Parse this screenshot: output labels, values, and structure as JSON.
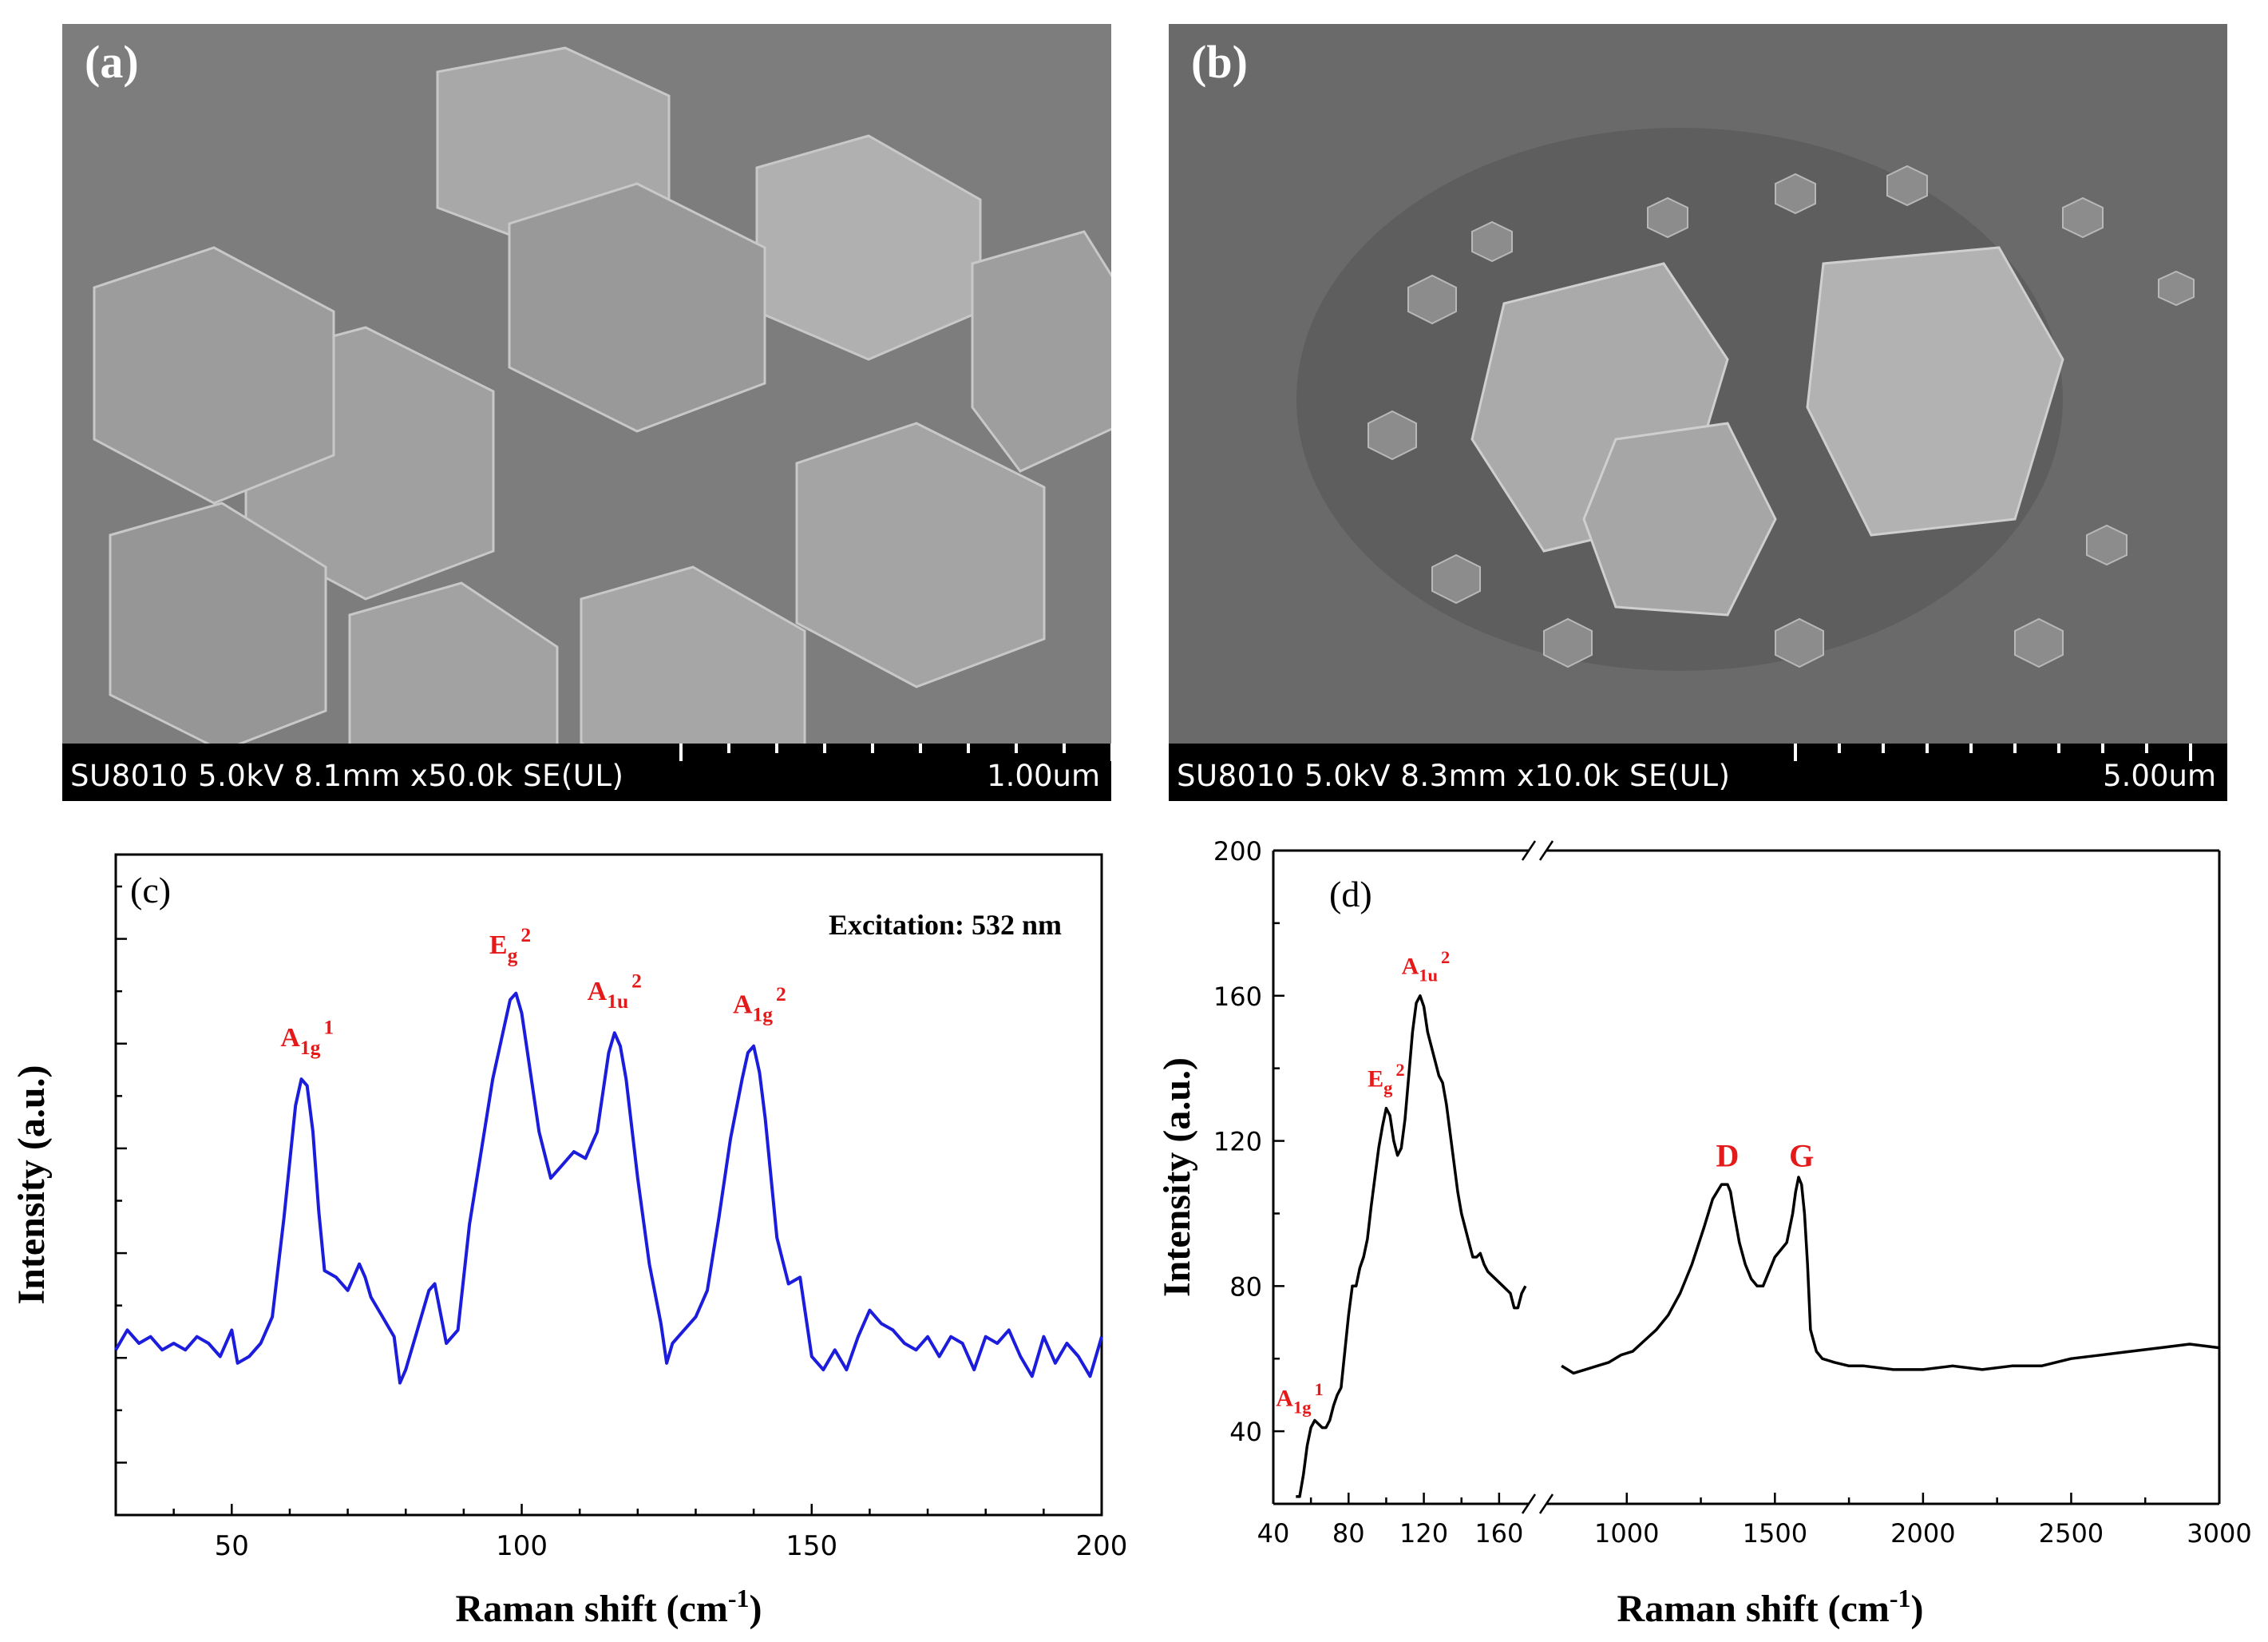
{
  "figure": {
    "panel_a": {
      "label": "(a)",
      "info_bar": "SU8010 5.0kV 8.1mm x50.0k SE(UL)",
      "scale_label": "1.00um"
    },
    "panel_b": {
      "label": "(b)",
      "info_bar": "SU8010 5.0kV 8.3mm x10.0k SE(UL)",
      "scale_label": "5.00um"
    }
  },
  "chart_data": [
    {
      "panel_label": "(c)",
      "type": "line",
      "annotation": "Excitation: 532 nm",
      "xlabel": "Raman shift (cm",
      "xlabel_sup": "-1",
      "xlabel_end": ")",
      "ylabel": "Intensity (a.u.)",
      "xlim": [
        30,
        200
      ],
      "xticks": [
        50,
        100,
        150,
        200
      ],
      "ylim": [
        0,
        1
      ],
      "y_minor_tick_count": 12,
      "yticks_labeled": false,
      "grid": false,
      "colors": {
        "series": "#1c1cdc",
        "peak_labels": "#e41a1a"
      },
      "series": [
        {
          "x": [
            30,
            32,
            34,
            36,
            38,
            40,
            42,
            44,
            46,
            48,
            50,
            51,
            53,
            55,
            57,
            59,
            61,
            62,
            63,
            64,
            65,
            66,
            68,
            70,
            72,
            73,
            74,
            76,
            78,
            79,
            80,
            82,
            84,
            85,
            87,
            89,
            91,
            93,
            95,
            97,
            98,
            99,
            100,
            101,
            103,
            105,
            107,
            109,
            111,
            113,
            115,
            116,
            117,
            118,
            120,
            122,
            124,
            125,
            126,
            128,
            130,
            132,
            134,
            136,
            138,
            139,
            140,
            141,
            142,
            144,
            146,
            148,
            150,
            152,
            154,
            156,
            158,
            160,
            162,
            164,
            166,
            168,
            170,
            172,
            174,
            176,
            178,
            180,
            182,
            184,
            186,
            188,
            190,
            192,
            194,
            196,
            198,
            200
          ],
          "y": [
            0.25,
            0.28,
            0.26,
            0.27,
            0.25,
            0.26,
            0.25,
            0.27,
            0.26,
            0.24,
            0.28,
            0.23,
            0.24,
            0.26,
            0.3,
            0.45,
            0.62,
            0.66,
            0.65,
            0.58,
            0.46,
            0.37,
            0.36,
            0.34,
            0.38,
            0.36,
            0.33,
            0.3,
            0.27,
            0.2,
            0.22,
            0.28,
            0.34,
            0.35,
            0.26,
            0.28,
            0.44,
            0.55,
            0.66,
            0.74,
            0.78,
            0.79,
            0.76,
            0.7,
            0.58,
            0.51,
            0.53,
            0.55,
            0.54,
            0.58,
            0.7,
            0.73,
            0.71,
            0.66,
            0.51,
            0.38,
            0.29,
            0.23,
            0.26,
            0.28,
            0.3,
            0.34,
            0.45,
            0.57,
            0.66,
            0.7,
            0.71,
            0.67,
            0.6,
            0.42,
            0.35,
            0.36,
            0.24,
            0.22,
            0.25,
            0.22,
            0.27,
            0.31,
            0.29,
            0.28,
            0.26,
            0.25,
            0.27,
            0.24,
            0.27,
            0.26,
            0.22,
            0.27,
            0.26,
            0.28,
            0.24,
            0.21,
            0.27,
            0.23,
            0.26,
            0.24,
            0.21,
            0.27
          ]
        }
      ],
      "peak_labels": [
        {
          "base": "A",
          "sub": "1g",
          "sup": "1",
          "x": 63,
          "y": 0.71
        },
        {
          "base": "E",
          "sub": "g",
          "sup": "2",
          "x": 98,
          "y": 0.85
        },
        {
          "base": "A",
          "sub": "1u",
          "sup": "2",
          "x": 116,
          "y": 0.78
        },
        {
          "base": "A",
          "sub": "1g",
          "sup": "2",
          "x": 141,
          "y": 0.76
        }
      ]
    },
    {
      "panel_label": "(d)",
      "type": "line",
      "xlabel": "Raman shift (cm",
      "xlabel_sup": "-1",
      "xlabel_end": ")",
      "ylabel": "Intensity (a.u.)",
      "ylim": [
        20,
        200
      ],
      "yticks": [
        40,
        80,
        120,
        160,
        200
      ],
      "broken_x_axis": true,
      "x_segment_1": {
        "xlim": [
          40,
          180
        ],
        "xticks": [
          40,
          80,
          120,
          160
        ]
      },
      "x_segment_2": {
        "xlim": [
          750,
          3000
        ],
        "xticks": [
          1000,
          1500,
          2000,
          2500,
          3000
        ]
      },
      "grid": false,
      "colors": {
        "series": "#000000",
        "peak_labels": "#e41a1a"
      },
      "series": [
        {
          "segment": 1,
          "x": [
            52,
            54,
            56,
            58,
            60,
            62,
            64,
            66,
            68,
            70,
            72,
            74,
            76,
            78,
            80,
            82,
            84,
            86,
            88,
            90,
            92,
            94,
            96,
            98,
            100,
            102,
            104,
            106,
            108,
            110,
            112,
            114,
            116,
            118,
            120,
            122,
            124,
            126,
            128,
            130,
            132,
            134,
            136,
            138,
            140,
            142,
            144,
            146,
            148,
            150,
            152,
            154,
            156,
            158,
            160,
            162,
            164,
            166,
            168,
            170,
            172,
            174
          ],
          "y": [
            22,
            22,
            28,
            36,
            41,
            43,
            42,
            41,
            41,
            43,
            47,
            50,
            52,
            62,
            72,
            80,
            80,
            85,
            88,
            93,
            102,
            110,
            118,
            124,
            129,
            127,
            120,
            116,
            118,
            126,
            138,
            150,
            158,
            160,
            157,
            150,
            146,
            142,
            138,
            136,
            130,
            122,
            114,
            106,
            100,
            96,
            92,
            88,
            88,
            89,
            86,
            84,
            83,
            82,
            81,
            80,
            79,
            78,
            74,
            74,
            78,
            80
          ]
        },
        {
          "segment": 2,
          "x": [
            780,
            820,
            860,
            900,
            940,
            980,
            1020,
            1060,
            1100,
            1140,
            1180,
            1220,
            1260,
            1290,
            1320,
            1340,
            1350,
            1360,
            1380,
            1400,
            1420,
            1440,
            1460,
            1480,
            1500,
            1520,
            1540,
            1560,
            1570,
            1580,
            1590,
            1600,
            1610,
            1620,
            1640,
            1660,
            1700,
            1750,
            1800,
            1900,
            2000,
            2100,
            2200,
            2300,
            2400,
            2500,
            2600,
            2700,
            2800,
            2900,
            3000
          ],
          "y": [
            58,
            56,
            57,
            58,
            59,
            61,
            62,
            65,
            68,
            72,
            78,
            86,
            96,
            104,
            108,
            108,
            106,
            101,
            92,
            86,
            82,
            80,
            80,
            84,
            88,
            90,
            92,
            100,
            106,
            110,
            108,
            100,
            86,
            68,
            62,
            60,
            59,
            58,
            58,
            57,
            57,
            58,
            57,
            58,
            58,
            60,
            61,
            62,
            63,
            64,
            63
          ]
        }
      ],
      "peak_labels": [
        {
          "base": "A",
          "sub": "1g",
          "sup": "1",
          "segment": 1,
          "x": 54,
          "y": 47
        },
        {
          "base": "E",
          "sub": "g",
          "sup": "2",
          "segment": 1,
          "x": 100,
          "y": 135
        },
        {
          "base": "A",
          "sub": "1u",
          "sup": "2",
          "segment": 1,
          "x": 121,
          "y": 166
        },
        {
          "base": "D",
          "sub": "",
          "sup": "",
          "segment": 2,
          "x": 1340,
          "y": 113
        },
        {
          "base": "G",
          "sub": "",
          "sup": "",
          "segment": 2,
          "x": 1590,
          "y": 113
        }
      ]
    }
  ]
}
